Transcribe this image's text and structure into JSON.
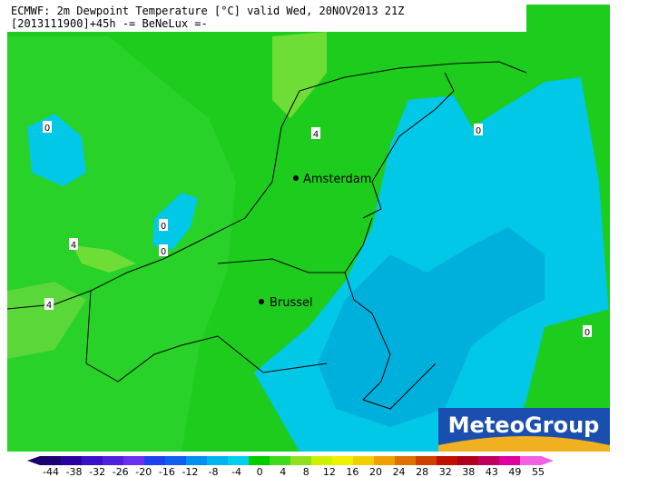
{
  "header": {
    "line1": "ECMWF: 2m Dewpoint Temperature [°C] valid Wed, 20NOV2013 21Z",
    "line2": "[2013111900]+45h  -= BeNeLux =-"
  },
  "cities": [
    "Amsterdam",
    "Brussel"
  ],
  "contour_labels": [
    "0",
    "4",
    "0",
    "0",
    "0",
    "4",
    "4",
    "0"
  ],
  "logo": "MeteoGroup",
  "legend": {
    "ticks": [
      "-44",
      "-38",
      "-32",
      "-26",
      "-20",
      "-16",
      "-12",
      "-8",
      "-4",
      "0",
      "4",
      "8",
      "12",
      "16",
      "20",
      "24",
      "28",
      "32",
      "38",
      "43",
      "49",
      "55"
    ],
    "colors": [
      "#1a0070",
      "#2a00a0",
      "#3a10c8",
      "#5020e0",
      "#6a30f0",
      "#2040f0",
      "#1060f0",
      "#0090f0",
      "#00b4f0",
      "#00d0f0",
      "#00cc00",
      "#40d820",
      "#90e020",
      "#d0f000",
      "#f0f000",
      "#f0d000",
      "#f0a000",
      "#e07000",
      "#d04000",
      "#c01000",
      "#b00020",
      "#c00060",
      "#e000a0",
      "#f060e0"
    ]
  }
}
